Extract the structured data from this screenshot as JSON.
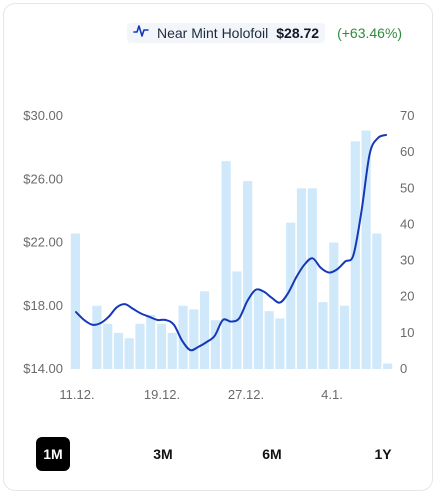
{
  "legend": {
    "name": "Near Mint Holofoil",
    "price": "$28.72",
    "change": "(+63.46%)",
    "icon": "line-chart-icon"
  },
  "colors": {
    "line": "#1538b8",
    "bars": "#cfe9fb",
    "change_positive": "#2e8b3d",
    "active_range_bg": "#000000"
  },
  "ranges": {
    "items": [
      "1M",
      "3M",
      "6M",
      "1Y"
    ],
    "active": "1M"
  },
  "chart_data": {
    "type": "line+bar",
    "title": "",
    "x_tick_labels": [
      "11.12.",
      "19.12.",
      "27.12.",
      "4.1."
    ],
    "y_left": {
      "ticks": [
        "$14.00",
        "$18.00",
        "$22.00",
        "$26.00",
        "$30.00"
      ],
      "range": [
        14,
        30
      ]
    },
    "y_right": {
      "ticks": [
        "0",
        "10",
        "20",
        "30",
        "40",
        "50",
        "60",
        "70"
      ],
      "range": [
        0,
        70
      ]
    },
    "series": [
      {
        "type": "line",
        "axis": "left",
        "values": [
          17.6,
          17.1,
          16.8,
          16.9,
          17.3,
          17.9,
          18.1,
          17.8,
          17.5,
          17.3,
          17.1,
          17.1,
          16.8,
          15.8,
          15.2,
          15.4,
          15.7,
          16.1,
          17.1,
          17.0,
          17.2,
          18.3,
          19.0,
          18.9,
          18.5,
          18.2,
          18.8,
          19.8,
          20.6,
          21.0,
          20.4,
          20.1,
          20.3,
          20.8,
          21.2,
          24.0,
          27.6,
          28.6,
          28.8
        ]
      },
      {
        "type": "bar",
        "axis": "right",
        "values": [
          37.5,
          0,
          17.5,
          12.5,
          10,
          8.5,
          12.5,
          15,
          12.5,
          10,
          17.5,
          16.5,
          21.5,
          13.5,
          57.5,
          27,
          52,
          21.5,
          16,
          14,
          40.5,
          50,
          50,
          18.5,
          35,
          17.5,
          63,
          66,
          37.5,
          1.5
        ]
      }
    ],
    "grid": false,
    "legend_position": "top-right"
  }
}
